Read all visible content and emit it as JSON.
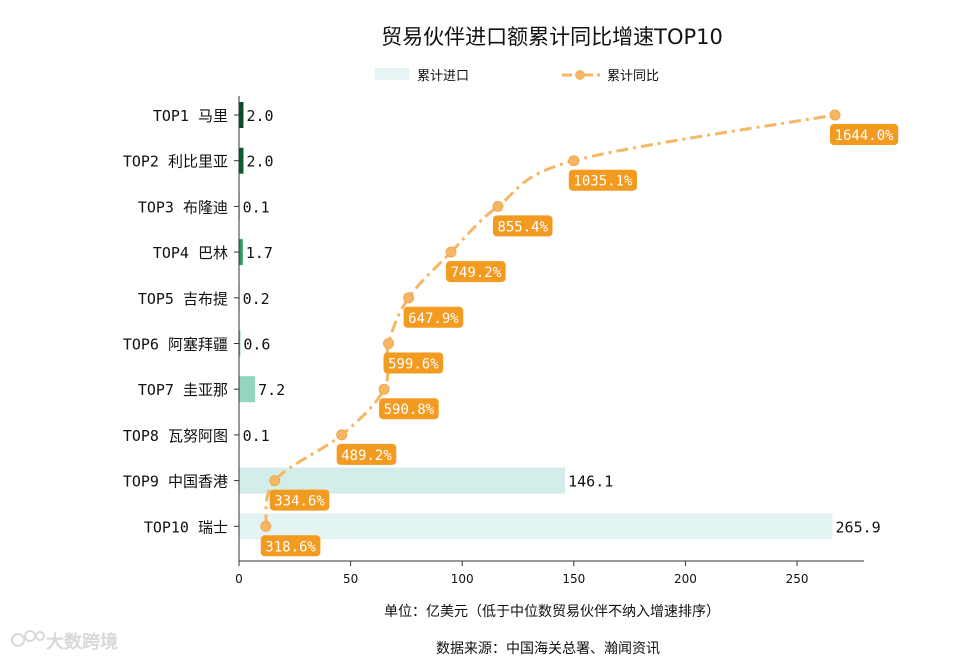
{
  "chart_data": {
    "type": "bar+line",
    "title": "贸易伙伴进口额累计同比增速TOP10",
    "legend": [
      "累计进口",
      "累计同比"
    ],
    "categories": [
      "TOP1 马里",
      "TOP2 利比里亚",
      "TOP3 布隆迪",
      "TOP4 巴林",
      "TOP5 吉布提",
      "TOP6 阿塞拜疆",
      "TOP7 圭亚那",
      "TOP8 瓦努阿图",
      "TOP9 中国香港",
      "TOP10 瑞士"
    ],
    "bar_values": [
      2.0,
      2.0,
      0.1,
      1.7,
      0.2,
      0.6,
      7.2,
      0.1,
      146.1,
      265.9
    ],
    "bar_labels": [
      "2.0",
      "2.0",
      "0.1",
      "1.7",
      "0.2",
      "0.6",
      "7.2",
      "0.1",
      "146.1",
      "265.9"
    ],
    "bar_colors": [
      "#0b4d2a",
      "#0e5a31",
      "#1c7a45",
      "#2e9a5e",
      "#4fb57a",
      "#6cc49a",
      "#93d6c0",
      "#b5e3d6",
      "#d3eeea",
      "#e4f4f5"
    ],
    "yoy_values": [
      1644.0,
      1035.1,
      855.4,
      749.2,
      647.9,
      599.6,
      590.8,
      489.2,
      334.6,
      318.6
    ],
    "yoy_labels": [
      "1644.0%",
      "1035.1%",
      "855.4%",
      "749.2%",
      "647.9%",
      "599.6%",
      "590.8%",
      "489.2%",
      "334.6%",
      "318.6%"
    ],
    "line_x_values": [
      267,
      150,
      116,
      95,
      76,
      67,
      65,
      46,
      16,
      12
    ],
    "xlim": [
      0,
      280
    ],
    "xticks": [
      0,
      50,
      100,
      150,
      200,
      250
    ],
    "xtick_labels": [
      "0",
      "50",
      "100",
      "150",
      "200",
      "250"
    ],
    "line_color": "#f5b765",
    "label_box_color": "#f39a21",
    "xlabel": "单位：亿美元（低于中位数贸易伙伴不纳入增速排序）",
    "source": "数据来源：中国海关总署、瀚闻资讯",
    "watermark": "大数跨境"
  }
}
